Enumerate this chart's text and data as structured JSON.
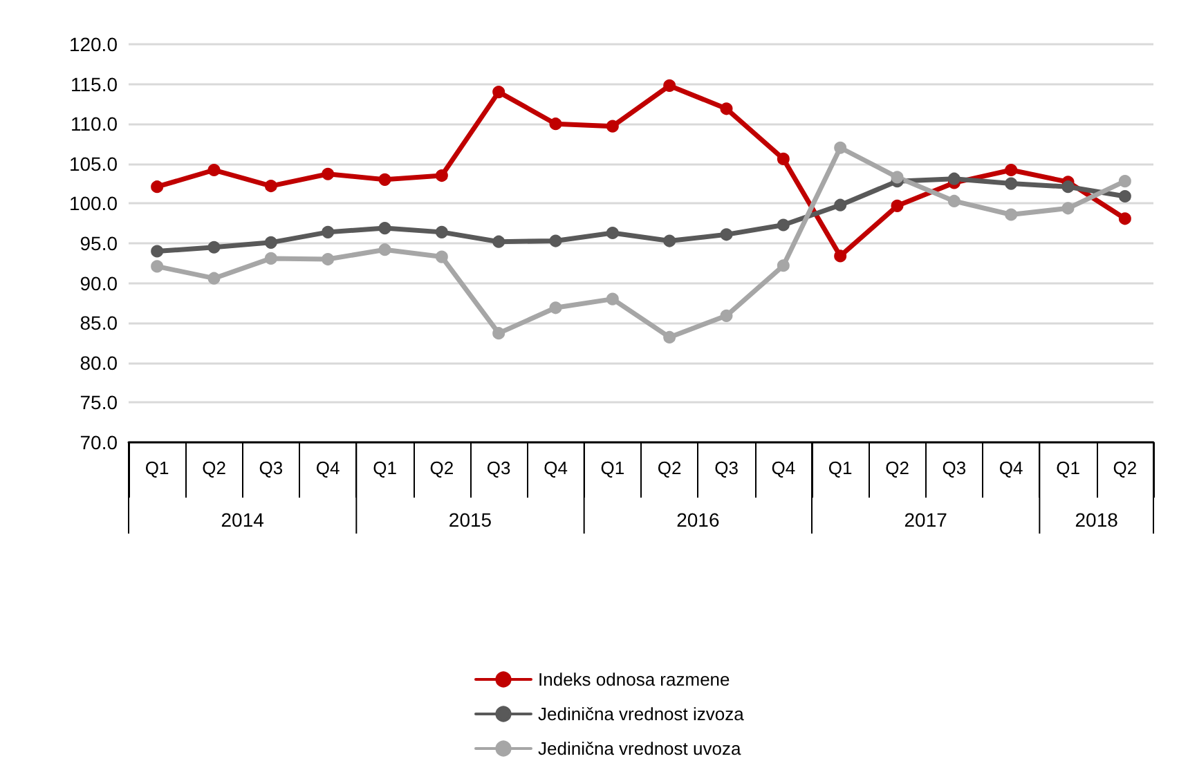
{
  "chart_data": {
    "type": "line",
    "categories": [
      "Q1",
      "Q2",
      "Q3",
      "Q4",
      "Q1",
      "Q2",
      "Q3",
      "Q4",
      "Q1",
      "Q2",
      "Q3",
      "Q4",
      "Q1",
      "Q2",
      "Q3",
      "Q4",
      "Q1",
      "Q2"
    ],
    "annotations": [
      "2014",
      "2015",
      "2016",
      "2017",
      "2018"
    ],
    "series": [
      {
        "name": "Indeks odnosa razmene",
        "color": "#c00000",
        "values": [
          102.1,
          104.2,
          102.2,
          103.7,
          103.0,
          103.5,
          114.0,
          110.0,
          109.7,
          114.8,
          111.9,
          105.6,
          93.4,
          99.7,
          102.6,
          104.2,
          102.7,
          98.1
        ]
      },
      {
        "name": "Jedinična vrednost izvoza",
        "color": "#595959",
        "values": [
          94.0,
          94.5,
          95.1,
          96.4,
          96.9,
          96.4,
          95.2,
          95.3,
          96.3,
          95.3,
          96.1,
          97.3,
          99.8,
          102.8,
          103.1,
          102.5,
          102.1,
          100.9
        ]
      },
      {
        "name": "Jedinična vrednost uvoza",
        "color": "#a6a6a6",
        "values": [
          92.1,
          90.6,
          93.1,
          93.0,
          94.2,
          93.3,
          83.7,
          86.9,
          88.0,
          83.2,
          85.9,
          92.2,
          107.0,
          103.3,
          100.3,
          98.6,
          99.4,
          102.8
        ]
      }
    ],
    "ylim": [
      70,
      120
    ],
    "yticks": [
      {
        "value": 70,
        "label": "70.0"
      },
      {
        "value": 75,
        "label": "75.0"
      },
      {
        "value": 80,
        "label": "80.0"
      },
      {
        "value": 85,
        "label": "85.0"
      },
      {
        "value": 90,
        "label": "90.0"
      },
      {
        "value": 95,
        "label": "95.0"
      },
      {
        "value": 100,
        "label": "100.0"
      },
      {
        "value": 105,
        "label": "105.0"
      },
      {
        "value": 110,
        "label": "110.0"
      },
      {
        "value": 115,
        "label": "115.0"
      },
      {
        "value": 120,
        "label": "120.0"
      }
    ],
    "grid": "y",
    "legend": "bottom",
    "marker": "circle",
    "line_style": "solid"
  }
}
